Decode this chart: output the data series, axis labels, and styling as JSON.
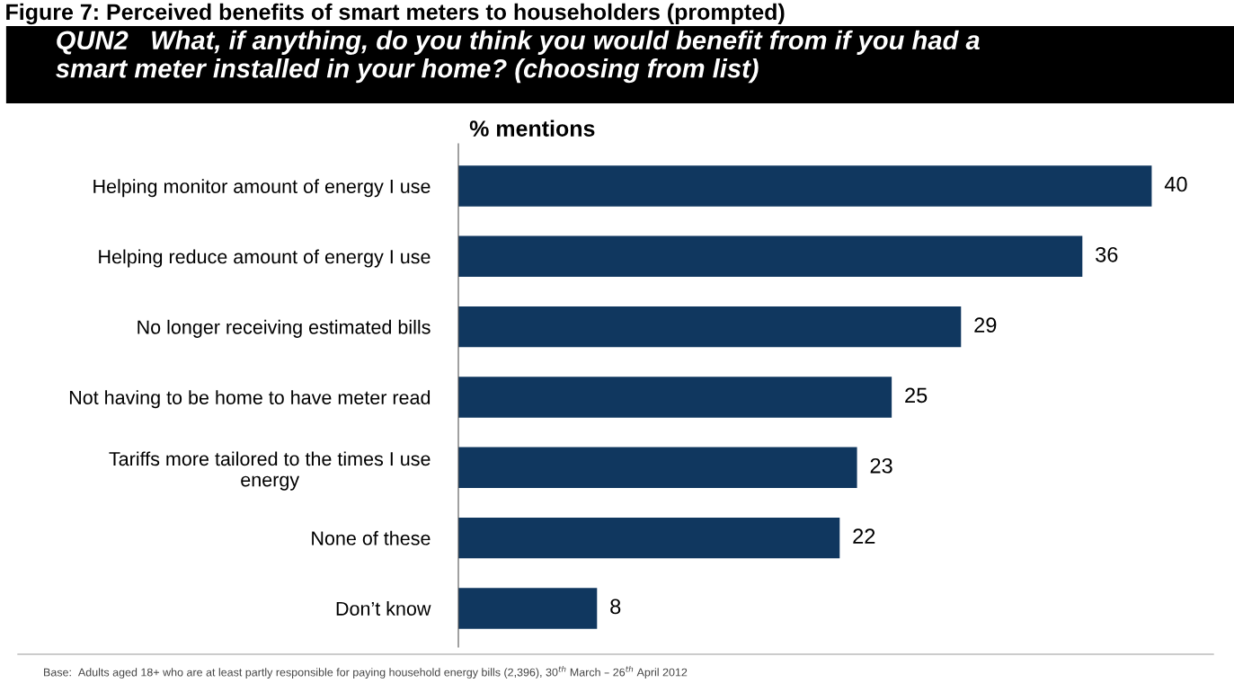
{
  "chart_data": {
    "type": "bar",
    "orientation": "horizontal",
    "title": "Figure 7: Perceived benefits of smart meters to householders (prompted)",
    "subtitle": "QUN2   What, if anything, do you think you would benefit from if you had a\nsmart meter installed in your home? (choosing from list)",
    "xlabel": "% mentions",
    "categories": [
      "Helping monitor amount of energy I use",
      "Helping reduce amount of energy I use",
      "No longer receiving estimated bills",
      "Not having to be home to have meter read",
      "Tariffs more tailored to the times I use\nenergy",
      "None of these",
      "Don’t know"
    ],
    "values": [
      40,
      36,
      29,
      25,
      23,
      22,
      8
    ],
    "color": "#10375f",
    "data_labels": true,
    "grid": false,
    "legend": false,
    "tick_labels": "y",
    "annotations": [
      "Base:  Adults aged 18+ who are at least partly responsible for paying household energy bills (2,396), 30$^{th}$ March – 26$^{th}$ April 2012"
    ]
  }
}
